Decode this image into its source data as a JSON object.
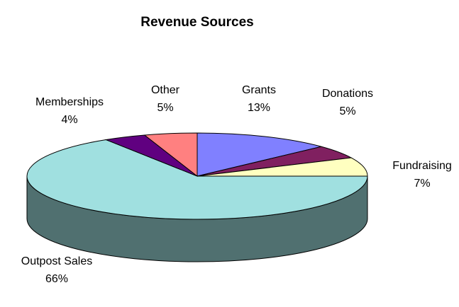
{
  "chart_data": {
    "type": "pie3d",
    "title": "Revenue Sources",
    "categories": [
      "Grants",
      "Donations",
      "Fundraising",
      "Outpost Sales",
      "Memberships",
      "Other"
    ],
    "values": [
      13,
      5,
      7,
      66,
      4,
      5
    ],
    "value_labels": [
      "13%",
      "5%",
      "7%",
      "66%",
      "4%",
      "5%"
    ],
    "colors": [
      "#8080ff",
      "#802060",
      "#ffffc0",
      "#a0e0e0",
      "#600080",
      "#ff8080"
    ]
  }
}
